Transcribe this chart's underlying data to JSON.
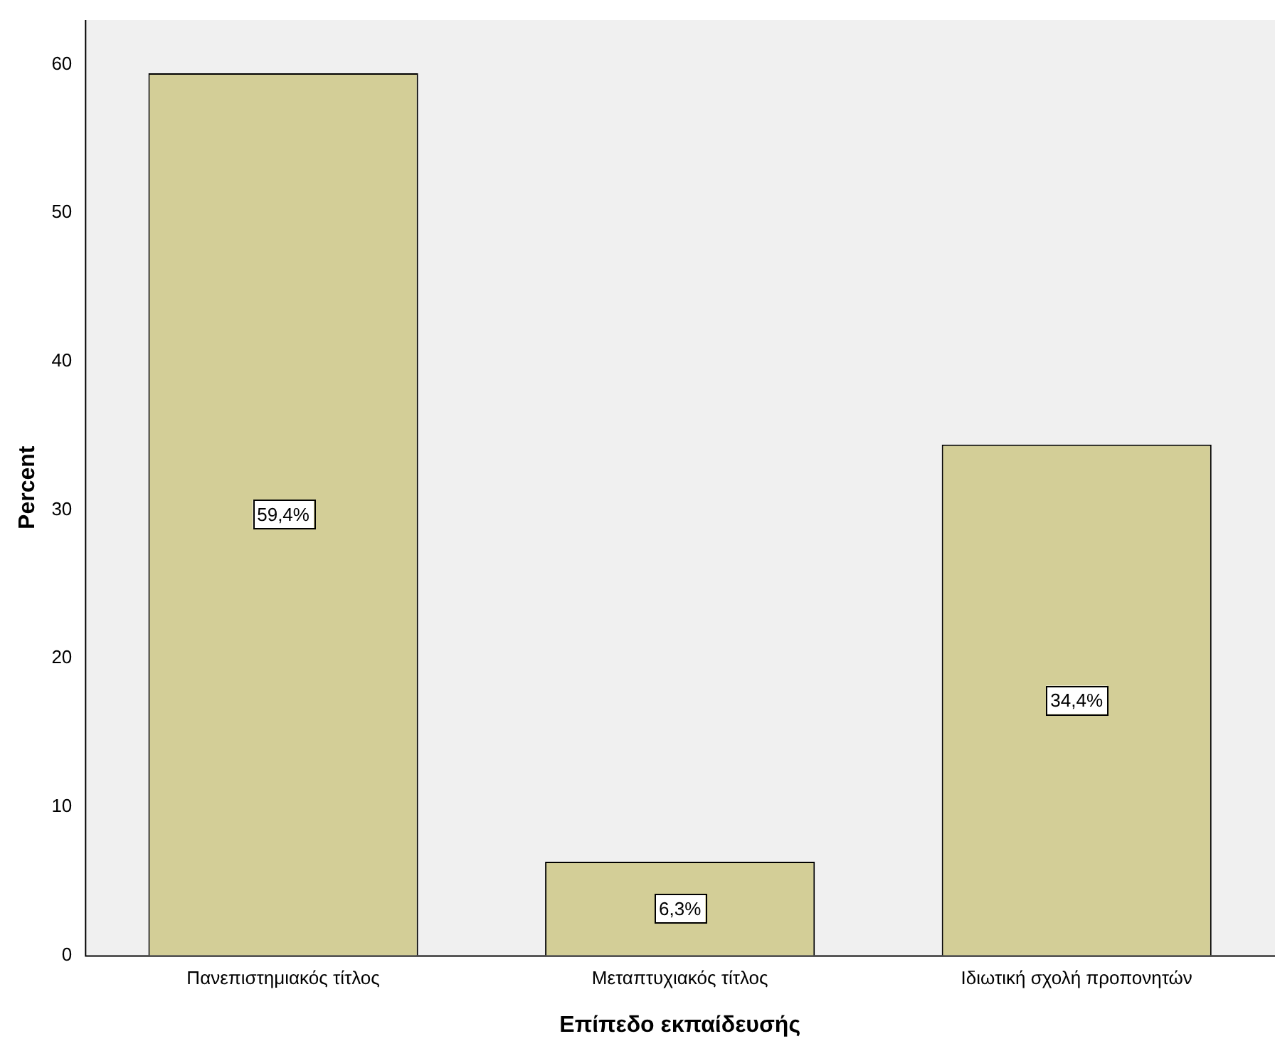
{
  "chart_data": {
    "type": "bar",
    "xlabel": "Επίπεδο εκπαίδευσής",
    "ylabel": "Percent",
    "categories": [
      "Πανεπιστημιακός τίτλος",
      "Μεταπτυχιακός τίτλος",
      "Ιδιωτική σχολή προπονητών"
    ],
    "values": [
      59.4,
      6.3,
      34.4
    ],
    "value_labels": [
      "59,4%",
      "6,3%",
      "34,4%"
    ],
    "color": "#d3ce97",
    "ylim": [
      0,
      63
    ],
    "yticks": [
      0,
      10,
      20,
      30,
      40,
      50,
      60
    ],
    "grid": false,
    "legend": false
  }
}
